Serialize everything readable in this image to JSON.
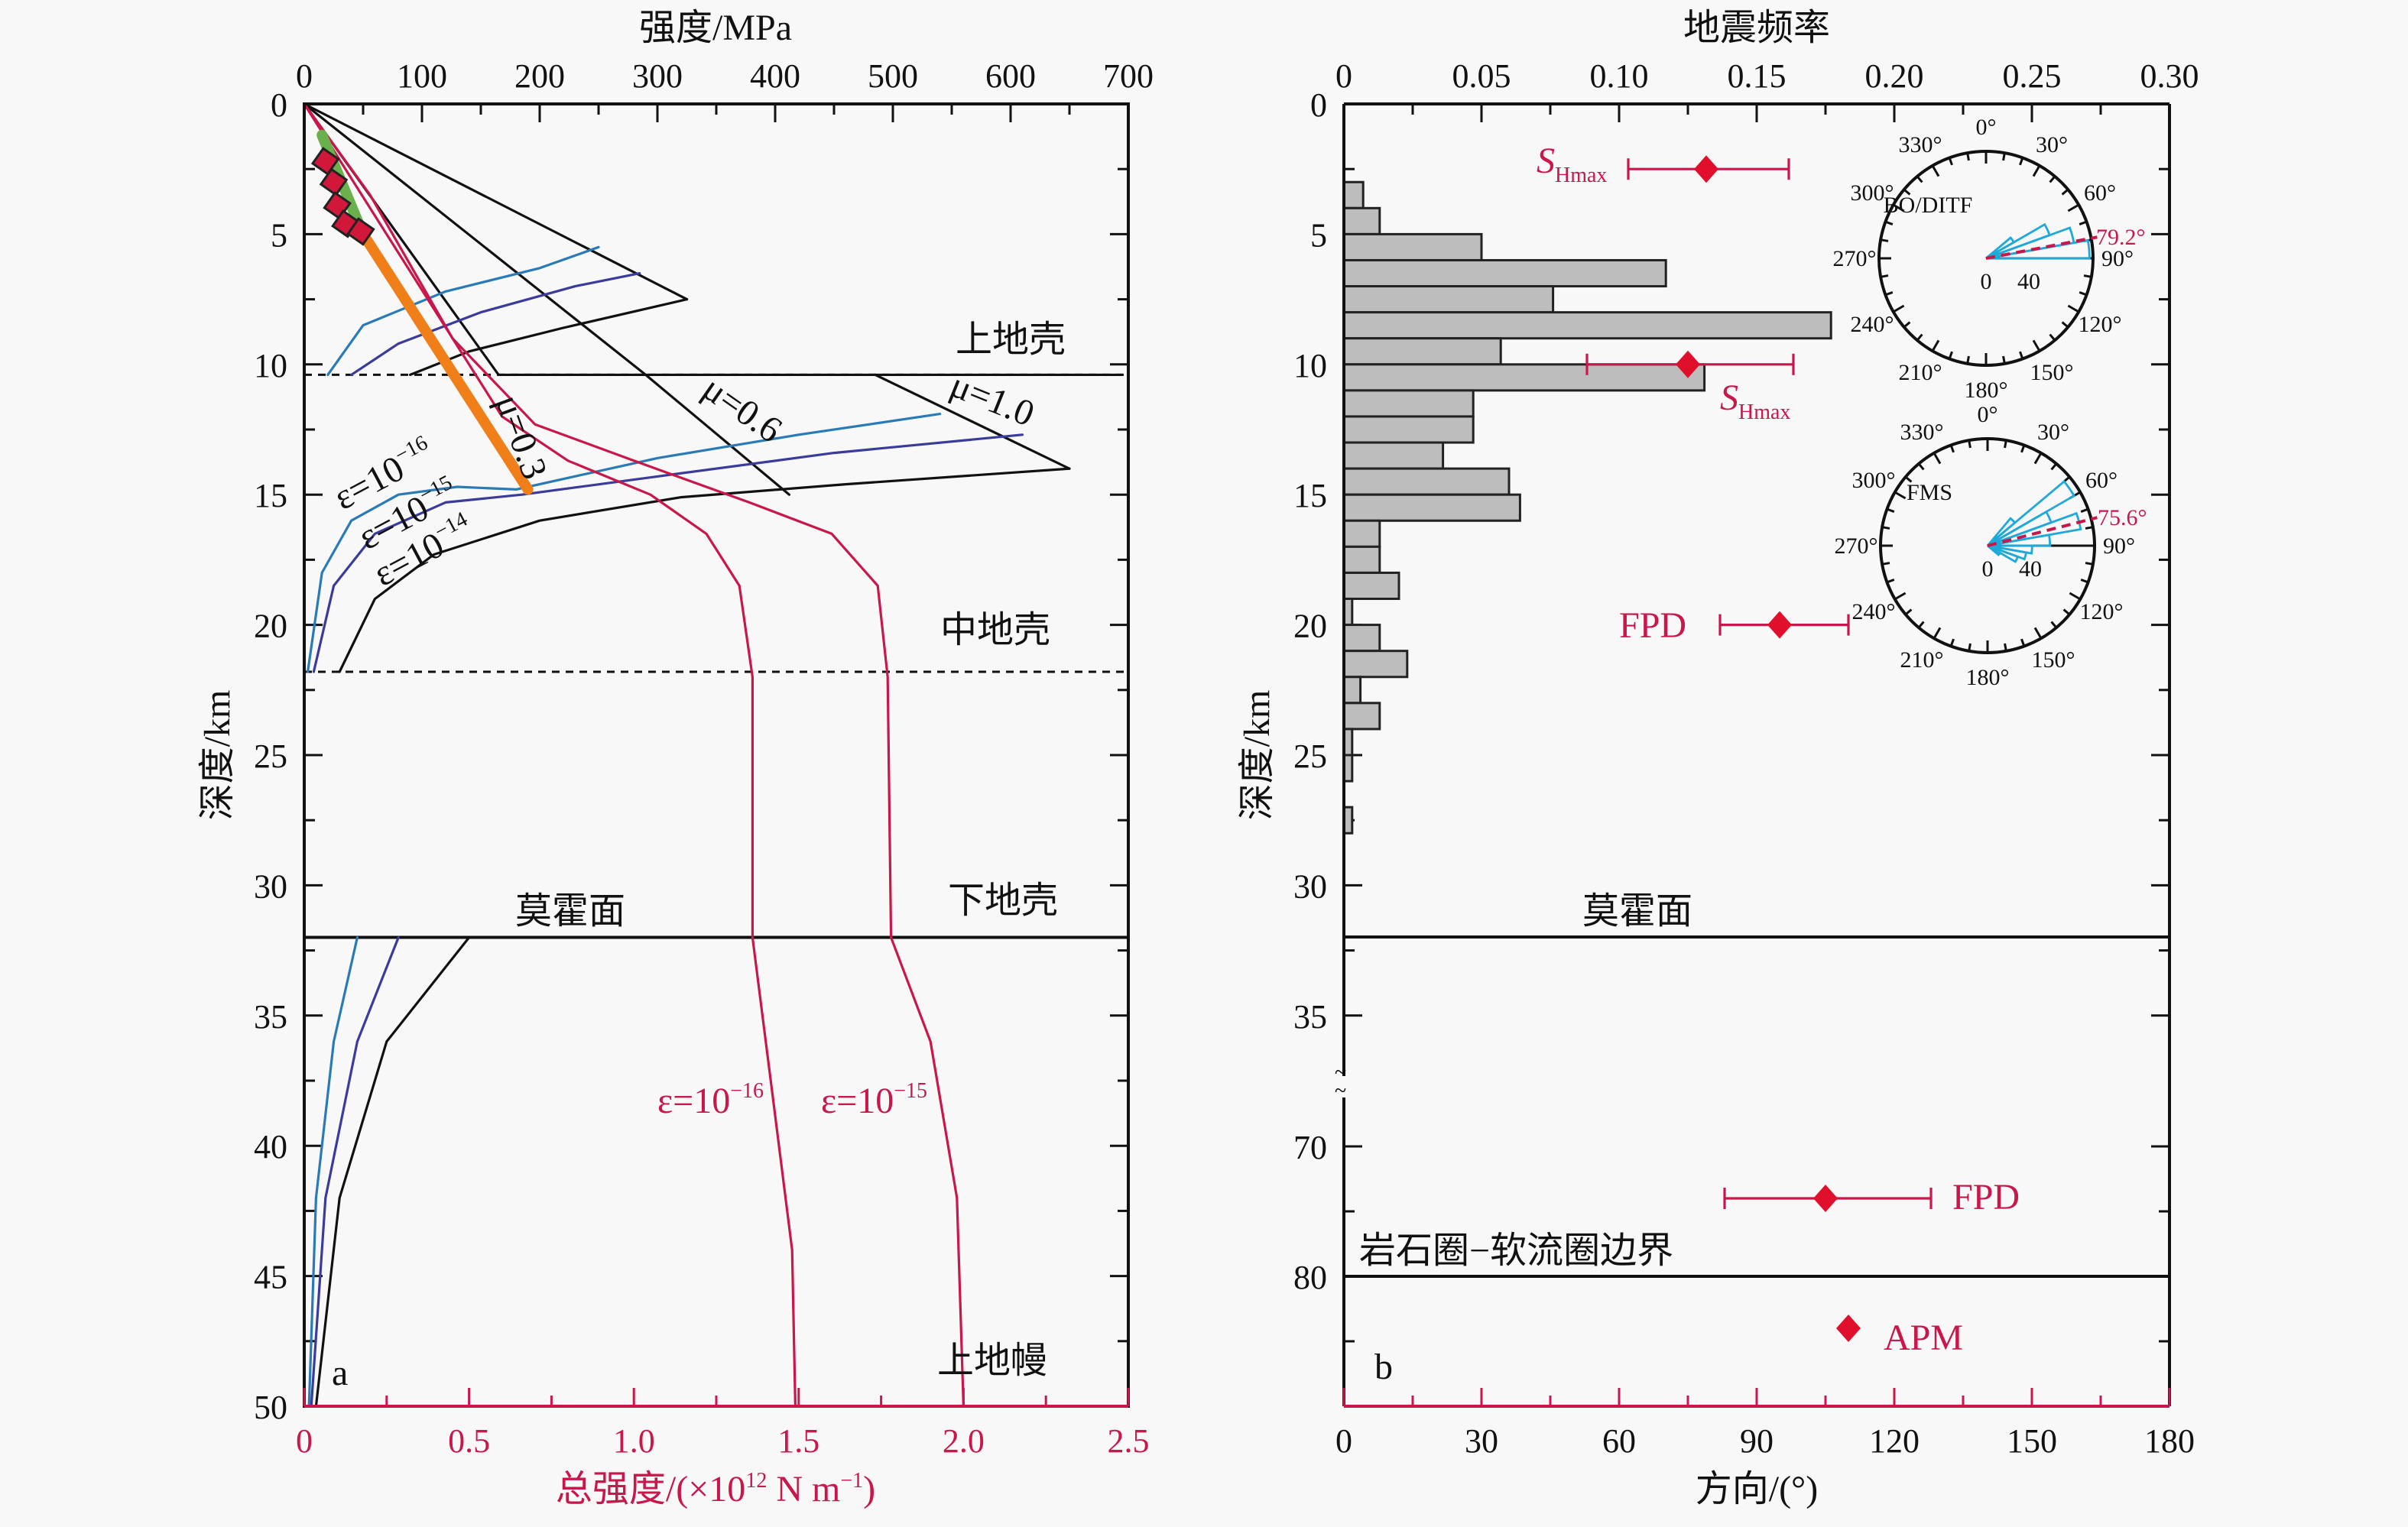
{
  "chart_data": [
    {
      "type": "line",
      "panel_label": "a",
      "title": "",
      "top_axis": {
        "label": "强度/MPa",
        "ticks": [
          "0",
          "100",
          "200",
          "300",
          "400",
          "500",
          "600",
          "700"
        ],
        "range": [
          0,
          700
        ]
      },
      "bottom_axis": {
        "label": "总强度/(×10¹² N m⁻¹)",
        "label_parts": {
          "prefix": "总强度/(×10",
          "exp": "12",
          "mid": " N m",
          "exp2": "−1",
          "suffix": ")"
        },
        "ticks": [
          "0",
          "0.5",
          "1.0",
          "1.5",
          "2.0",
          "2.5"
        ],
        "range": [
          0,
          2.5
        ],
        "color": "#c8174a"
      },
      "ylabel": "深度/km",
      "y_ticks": [
        "0",
        "5",
        "10",
        "15",
        "20",
        "25",
        "30",
        "35",
        "40",
        "45",
        "50"
      ],
      "ylim": [
        0,
        50
      ],
      "grid": false,
      "boundaries": [
        {
          "name": "upper-middle crust",
          "depth": 10.4,
          "style": "dashed"
        },
        {
          "name": "middle-lower crust",
          "depth": 21.8,
          "style": "dashed"
        },
        {
          "name": "moho",
          "depth": 32,
          "style": "solid",
          "label": "莫霍面"
        }
      ],
      "zone_labels": {
        "upper_crust": "上地壳",
        "middle_crust": "中地壳",
        "lower_crust": "下地壳",
        "upper_mantle": "上地幔",
        "moho": "莫霍面"
      },
      "friction_labels": [
        {
          "text": "μ=0.3",
          "mu": 0.3
        },
        {
          "text": "μ=0.6",
          "mu": 0.6
        },
        {
          "text": "μ=1.0",
          "mu": 1.0
        }
      ],
      "strain_rate_labels": [
        {
          "base": "ε=10",
          "exp": "−16"
        },
        {
          "base": "ε=10",
          "exp": "−15"
        },
        {
          "base": "ε=10",
          "exp": "−14"
        }
      ],
      "total_strength_labels": [
        {
          "base": "ε=10",
          "exp": "−16"
        },
        {
          "base": "ε=10",
          "exp": "−15"
        }
      ],
      "series": [
        {
          "name": "brittle μ=0.3",
          "axis": "top",
          "points": [
            [
              0,
              0
            ],
            [
              165,
              10.4
            ]
          ]
        },
        {
          "name": "brittle μ=0.6",
          "axis": "top",
          "points": [
            [
              0,
              0
            ],
            [
              290,
              10.4
            ],
            [
              412,
              15.0
            ]
          ]
        },
        {
          "name": "brittle μ=1.0",
          "axis": "top",
          "points": [
            [
              0,
              0
            ],
            [
              325,
              7.5
            ]
          ]
        },
        {
          "name": "brittle μ=1.0 lower",
          "axis": "top",
          "points": [
            [
              485,
              10.4
            ],
            [
              650,
              14.0
            ]
          ]
        },
        {
          "name": "upper crust creep ε=10⁻¹⁶",
          "axis": "top",
          "points": [
            [
              20,
              10.4
            ],
            [
              50,
              8.5
            ],
            [
              120,
              7.2
            ],
            [
              200,
              6.3
            ],
            [
              250,
              5.5
            ]
          ]
        },
        {
          "name": "upper crust creep ε=10⁻¹⁵",
          "axis": "top",
          "points": [
            [
              40,
              10.4
            ],
            [
              80,
              9.2
            ],
            [
              150,
              8.0
            ],
            [
              230,
              7.0
            ],
            [
              285,
              6.5
            ]
          ]
        },
        {
          "name": "upper crust creep ε=10⁻¹⁴",
          "axis": "top",
          "points": [
            [
              90,
              10.4
            ],
            [
              140,
              9.5
            ],
            [
              220,
              8.6
            ],
            [
              325,
              7.5
            ]
          ]
        },
        {
          "name": "middle crust creep ε=10⁻¹⁶",
          "axis": "top",
          "points": [
            [
              3,
              21.8
            ],
            [
              15,
              18
            ],
            [
              40,
              16
            ],
            [
              80,
              15
            ],
            [
              130,
              14.7
            ],
            [
              180,
              14.8
            ],
            [
              300,
              13.6
            ],
            [
              420,
              12.7
            ],
            [
              540,
              11.9
            ]
          ]
        },
        {
          "name": "middle crust creep ε=10⁻¹⁵",
          "axis": "top",
          "points": [
            [
              8,
              21.8
            ],
            [
              25,
              18.5
            ],
            [
              60,
              16.5
            ],
            [
              120,
              15.3
            ],
            [
              185,
              15.0
            ],
            [
              300,
              14.3
            ],
            [
              450,
              13.4
            ],
            [
              610,
              12.7
            ]
          ]
        },
        {
          "name": "middle crust creep ε=10⁻¹⁴",
          "axis": "top",
          "points": [
            [
              30,
              21.8
            ],
            [
              60,
              19
            ],
            [
              110,
              17.3
            ],
            [
              200,
              16.0
            ],
            [
              320,
              15.1
            ],
            [
              460,
              14.6
            ],
            [
              650,
              14.0
            ]
          ]
        },
        {
          "name": "mantle creep ε=10⁻¹⁶",
          "axis": "top",
          "points": [
            [
              45,
              32
            ],
            [
              25,
              36
            ],
            [
              10,
              42
            ],
            [
              4,
              50
            ]
          ]
        },
        {
          "name": "mantle creep ε=10⁻¹⁵",
          "axis": "top",
          "points": [
            [
              80,
              32
            ],
            [
              45,
              36
            ],
            [
              18,
              42
            ],
            [
              6,
              50
            ]
          ]
        },
        {
          "name": "mantle creep ε=10⁻¹⁴",
          "axis": "top",
          "points": [
            [
              140,
              32
            ],
            [
              70,
              36
            ],
            [
              30,
              42
            ],
            [
              10,
              50
            ]
          ]
        },
        {
          "name": "total strength ε=10⁻¹⁶",
          "axis": "bottom",
          "color": "#c8174a",
          "points": [
            [
              0,
              0
            ],
            [
              0.2,
              4
            ],
            [
              0.4,
              8
            ],
            [
              0.6,
              12
            ],
            [
              0.8,
              13.7
            ],
            [
              1.05,
              15
            ],
            [
              1.22,
              16.5
            ],
            [
              1.32,
              18.5
            ],
            [
              1.36,
              22
            ],
            [
              1.36,
              32
            ],
            [
              1.42,
              38
            ],
            [
              1.48,
              44
            ],
            [
              1.49,
              50
            ]
          ]
        },
        {
          "name": "total strength ε=10⁻¹⁵",
          "axis": "bottom",
          "color": "#c8174a",
          "points": [
            [
              0,
              0
            ],
            [
              0.2,
              3.5
            ],
            [
              0.45,
              9
            ],
            [
              0.7,
              12.3
            ],
            [
              1.0,
              13.7
            ],
            [
              1.35,
              15.3
            ],
            [
              1.6,
              16.5
            ],
            [
              1.74,
              18.5
            ],
            [
              1.77,
              22
            ],
            [
              1.78,
              32
            ],
            [
              1.9,
              36
            ],
            [
              1.98,
              42
            ],
            [
              2.0,
              50
            ]
          ]
        },
        {
          "name": "observed stress (green)",
          "axis": "top",
          "color": "#6ab04c",
          "points": [
            [
              15,
              1.2
            ],
            [
              50,
              5.0
            ]
          ]
        },
        {
          "name": "observed stress (orange)",
          "axis": "top",
          "color": "#f07f1a",
          "points": [
            [
              50,
              5.0
            ],
            [
              190,
              14.8
            ]
          ]
        }
      ],
      "markers": [
        {
          "name": "measured stress",
          "axis": "top",
          "color": "#d1173a",
          "points": [
            [
              18,
              2.2
            ],
            [
              25,
              3.0
            ],
            [
              28,
              3.9
            ],
            [
              35,
              4.6
            ],
            [
              48,
              4.9
            ]
          ]
        }
      ]
    },
    {
      "type": "bar",
      "panel_label": "b",
      "top_axis": {
        "label": "地震频率",
        "ticks": [
          "0",
          "0.05",
          "0.10",
          "0.15",
          "0.20",
          "0.25",
          "0.30"
        ],
        "range": [
          0,
          0.3
        ]
      },
      "bottom_axis": {
        "label": "方向/(°)",
        "ticks": [
          "0",
          "30",
          "60",
          "90",
          "120",
          "150",
          "180"
        ],
        "range": [
          0,
          180
        ],
        "color": "#c8174a"
      },
      "ylabel": "深度/km",
      "y_ticks": [
        "0",
        "5",
        "10",
        "15",
        "20",
        "25",
        "30",
        "35",
        "70",
        "80"
      ],
      "ylim": [
        0,
        90
      ],
      "axis_break": [
        37,
        67
      ],
      "histogram": {
        "bin_depth_top": [
          3,
          4,
          5,
          6,
          7,
          8,
          9,
          10,
          11,
          12,
          13,
          14,
          15,
          16,
          17,
          18,
          19,
          20,
          21,
          22,
          23,
          24,
          25,
          26,
          27
        ],
        "frequency": [
          0.007,
          0.013,
          0.05,
          0.117,
          0.076,
          0.177,
          0.057,
          0.131,
          0.047,
          0.047,
          0.036,
          0.06,
          0.064,
          0.013,
          0.013,
          0.02,
          0.003,
          0.013,
          0.023,
          0.006,
          0.013,
          0.003,
          0.003,
          0,
          0.003
        ]
      },
      "boundaries": [
        {
          "name": "moho",
          "depth": 32,
          "label": "莫霍面"
        },
        {
          "name": "lab",
          "depth": 80,
          "label": "岩石圈−软流圈边界"
        }
      ],
      "orientations": [
        {
          "label": "S",
          "sub": "Hmax",
          "depth": 2.5,
          "azimuth": 79,
          "min": 62,
          "max": 97
        },
        {
          "label": "S",
          "sub": "Hmax",
          "depth": 10,
          "azimuth": 75,
          "min": 53,
          "max": 98
        },
        {
          "label": "FPD",
          "depth": 20,
          "azimuth": 95,
          "min": 82,
          "max": 110
        },
        {
          "label": "FPD",
          "depth": 74,
          "azimuth": 105,
          "min": 83,
          "max": 128
        },
        {
          "label": "APM",
          "depth": 84,
          "azimuth": 110
        }
      ],
      "rose_diagrams": [
        {
          "title": "BO/DITF",
          "mean_label": "79.2°",
          "mean": 79.2,
          "radial_ticks": [
            "0",
            "40"
          ],
          "angle_labels": [
            "0°",
            "30°",
            "60°",
            "90°",
            "120°",
            "150°",
            "180°",
            "210°",
            "240°",
            "270°",
            "300°",
            "330°"
          ],
          "petals": [
            [
              55,
              10,
              18
            ],
            [
              65,
              10,
              38
            ],
            [
              75,
              10,
              50
            ],
            [
              85,
              10,
              58
            ]
          ]
        },
        {
          "title": "FMS",
          "mean_label": "75.6°",
          "mean": 75.6,
          "radial_ticks": [
            "0",
            "40"
          ],
          "angle_labels": [
            "0°",
            "30°",
            "60°",
            "90°",
            "120°",
            "150°",
            "180°",
            "210°",
            "240°",
            "270°",
            "300°",
            "330°"
          ],
          "petals": [
            [
              45,
              10,
              20
            ],
            [
              55,
              10,
              56
            ],
            [
              65,
              10,
              38
            ],
            [
              75,
              10,
              53
            ],
            [
              85,
              10,
              35
            ],
            [
              95,
              10,
              25
            ],
            [
              105,
              10,
              22
            ],
            [
              115,
              10,
              18
            ],
            [
              125,
              10,
              8
            ]
          ]
        }
      ]
    }
  ]
}
